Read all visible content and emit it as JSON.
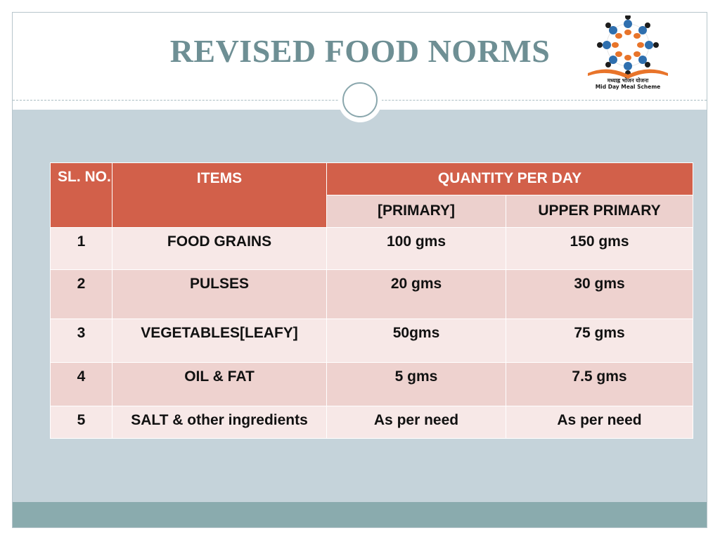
{
  "slide": {
    "title": "REVISED FOOD NORMS",
    "logo": {
      "line1": "मध्याह्न भोजन योजना",
      "line2": "Mid Day Meal Scheme",
      "icon": "mid-day-meal-logo"
    }
  },
  "table": {
    "headers": {
      "sl_no": "SL. NO.",
      "items": "ITEMS",
      "quantity": "QUANTITY PER DAY",
      "primary": "[PRIMARY]",
      "upper_primary": "UPPER PRIMARY"
    },
    "rows": [
      {
        "sl": "1",
        "item": "FOOD GRAINS",
        "primary": "100 gms",
        "upper_primary": "150 gms"
      },
      {
        "sl": "2",
        "item": "PULSES",
        "primary": "20 gms",
        "upper_primary": "30 gms"
      },
      {
        "sl": "3",
        "item": "VEGETABLES[LEAFY]",
        "primary": "50gms",
        "upper_primary": "75 gms"
      },
      {
        "sl": "4",
        "item": "OIL & FAT",
        "primary": "5 gms",
        "upper_primary": "7.5 gms"
      },
      {
        "sl": "5",
        "item": "SALT & other ingredients",
        "primary": "As per need",
        "upper_primary": "As per need"
      }
    ]
  },
  "colors": {
    "header": "#d2604a",
    "title": "#6e8f94",
    "band": "#c5d3da",
    "footer": "#8aabae"
  }
}
